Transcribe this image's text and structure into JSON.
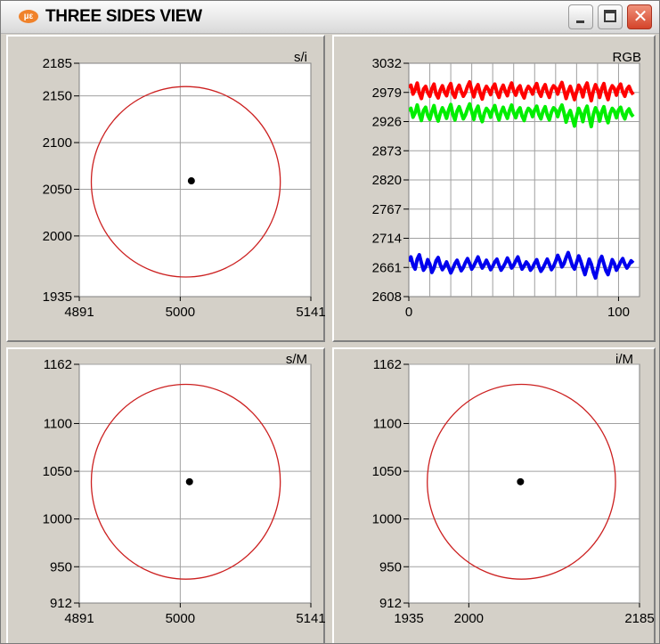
{
  "window": {
    "title": "THREE SIDES VIEW",
    "app_icon": "micro-epsilon-logo-icon",
    "app_icon_text": "µε",
    "close_glyph": "✕"
  },
  "colors": {
    "circle": "#cc2020",
    "grid": "#a0a0a0",
    "red_series": "#ff0000",
    "green_series": "#00ee00",
    "blue_series": "#0000ee",
    "plot_bg": "#ffffff",
    "panel_bg": "#d4d0c8"
  },
  "chart_data": [
    {
      "type": "scatter",
      "label": "s/i",
      "xlim": [
        4891,
        5141
      ],
      "ylim": [
        1935,
        2185
      ],
      "x_ticks": [
        {
          "value": 4891,
          "label": "4891"
        },
        {
          "value": 5000,
          "label": "5000"
        },
        {
          "value": 5141,
          "label": "5141"
        }
      ],
      "y_ticks": [
        {
          "value": 2185,
          "label": "2185"
        },
        {
          "value": 2150,
          "label": "2150"
        },
        {
          "value": 2100,
          "label": "2100"
        },
        {
          "value": 2050,
          "label": "2050"
        },
        {
          "value": 2000,
          "label": "2000"
        },
        {
          "value": 1935,
          "label": "1935"
        }
      ],
      "grid_x": [
        5000
      ],
      "grid_y": [
        2150,
        2100,
        2050,
        2000
      ],
      "grid": true,
      "circle": {
        "cx": 5006,
        "cy": 2058,
        "r": 102
      },
      "point": {
        "x": 5012,
        "y": 2059
      }
    },
    {
      "type": "line",
      "label": "RGB",
      "xlim": [
        0,
        110
      ],
      "ylim": [
        2608,
        3032
      ],
      "x_ticks": [
        {
          "value": 0,
          "label": "0"
        },
        {
          "value": 100,
          "label": "100"
        }
      ],
      "y_ticks": [
        {
          "value": 3032,
          "label": "3032"
        },
        {
          "value": 2979,
          "label": "2979"
        },
        {
          "value": 2926,
          "label": "2926"
        },
        {
          "value": 2873,
          "label": "2873"
        },
        {
          "value": 2820,
          "label": "2820"
        },
        {
          "value": 2767,
          "label": "2767"
        },
        {
          "value": 2714,
          "label": "2714"
        },
        {
          "value": 2661,
          "label": "2661"
        },
        {
          "value": 2608,
          "label": "2608"
        }
      ],
      "grid_x": [
        10,
        20,
        30,
        40,
        50,
        60,
        70,
        80,
        90,
        100
      ],
      "grid_y": [
        2979,
        2926,
        2873,
        2820,
        2767,
        2714,
        2661
      ],
      "grid": true,
      "series": [
        {
          "color": "#ff0000",
          "y": [
            2988,
            2992,
            2976,
            2984,
            2996,
            2978,
            2968,
            2985,
            2990,
            2979,
            2972,
            2986,
            2994,
            2976,
            2969,
            2983,
            2991,
            2980,
            2973,
            2988,
            2995,
            2977,
            2970,
            2985,
            2992,
            2981,
            2972,
            2979,
            2990,
            2998,
            2983,
            2971,
            2986,
            2993,
            2978,
            2967,
            2982,
            2990,
            2984,
            2975,
            2988,
            2994,
            2979,
            2970,
            2984,
            2992,
            2981,
            2973,
            2987,
            2996,
            2982,
            2974,
            2986,
            2991,
            2977,
            2969,
            2983,
            2990,
            2985,
            2976,
            2988,
            2995,
            2980,
            2972,
            2986,
            2993,
            2979,
            2970,
            2984,
            2991,
            2987,
            2976,
            2989,
            2997,
            2983,
            2968,
            2981,
            2990,
            2978,
            2966,
            2980,
            2992,
            2985,
            2971,
            2988,
            2996,
            2979,
            2964,
            2982,
            2993,
            2984,
            2970,
            2986,
            2995,
            2977,
            2966,
            2983,
            2991,
            2986,
            2974,
            2988,
            2994,
            2980,
            2972,
            2985,
            2990,
            2981,
            2975
          ]
        },
        {
          "color": "#00ee00",
          "y": [
            2945,
            2950,
            2934,
            2942,
            2956,
            2940,
            2928,
            2946,
            2952,
            2938,
            2930,
            2944,
            2955,
            2937,
            2927,
            2941,
            2951,
            2943,
            2932,
            2947,
            2957,
            2939,
            2929,
            2945,
            2953,
            2942,
            2931,
            2938,
            2949,
            2958,
            2944,
            2930,
            2946,
            2954,
            2936,
            2926,
            2941,
            2950,
            2945,
            2934,
            2947,
            2955,
            2940,
            2929,
            2943,
            2952,
            2941,
            2932,
            2946,
            2956,
            2942,
            2933,
            2945,
            2951,
            2936,
            2928,
            2942,
            2950,
            2946,
            2935,
            2947,
            2954,
            2939,
            2931,
            2945,
            2953,
            2938,
            2929,
            2943,
            2951,
            2947,
            2935,
            2948,
            2956,
            2942,
            2925,
            2938,
            2946,
            2932,
            2918,
            2936,
            2950,
            2941,
            2926,
            2945,
            2954,
            2934,
            2917,
            2939,
            2951,
            2943,
            2927,
            2944,
            2953,
            2935,
            2924,
            2941,
            2950,
            2945,
            2933,
            2947,
            2952,
            2939,
            2931,
            2944,
            2949,
            2940,
            2935
          ]
        },
        {
          "color": "#0000ee",
          "y": [
            2672,
            2680,
            2665,
            2658,
            2676,
            2684,
            2669,
            2656,
            2662,
            2675,
            2667,
            2652,
            2660,
            2673,
            2679,
            2666,
            2657,
            2663,
            2671,
            2661,
            2651,
            2659,
            2668,
            2674,
            2664,
            2655,
            2661,
            2670,
            2677,
            2668,
            2658,
            2664,
            2672,
            2680,
            2669,
            2660,
            2666,
            2674,
            2666,
            2657,
            2663,
            2671,
            2676,
            2665,
            2656,
            2662,
            2669,
            2678,
            2670,
            2660,
            2665,
            2673,
            2680,
            2668,
            2658,
            2664,
            2671,
            2666,
            2656,
            2661,
            2669,
            2675,
            2663,
            2654,
            2660,
            2668,
            2676,
            2667,
            2657,
            2663,
            2672,
            2683,
            2674,
            2662,
            2668,
            2679,
            2688,
            2676,
            2664,
            2658,
            2670,
            2682,
            2672,
            2659,
            2648,
            2662,
            2676,
            2667,
            2652,
            2642,
            2658,
            2673,
            2681,
            2668,
            2655,
            2648,
            2662,
            2675,
            2668,
            2656,
            2663,
            2671,
            2677,
            2667,
            2660,
            2666,
            2673,
            2669
          ]
        }
      ]
    },
    {
      "type": "scatter",
      "label": "s/M",
      "xlim": [
        4891,
        5141
      ],
      "ylim": [
        912,
        1162
      ],
      "x_ticks": [
        {
          "value": 4891,
          "label": "4891"
        },
        {
          "value": 5000,
          "label": "5000"
        },
        {
          "value": 5141,
          "label": "5141"
        }
      ],
      "y_ticks": [
        {
          "value": 1162,
          "label": "1162"
        },
        {
          "value": 1100,
          "label": "1100"
        },
        {
          "value": 1050,
          "label": "1050"
        },
        {
          "value": 1000,
          "label": "1000"
        },
        {
          "value": 950,
          "label": "950"
        },
        {
          "value": 912,
          "label": "912"
        }
      ],
      "grid_x": [
        5000
      ],
      "grid_y": [
        1162,
        1100,
        1050,
        1000,
        950
      ],
      "grid": true,
      "circle": {
        "cx": 5006,
        "cy": 1039,
        "r": 102
      },
      "point": {
        "x": 5010,
        "y": 1039
      }
    },
    {
      "type": "scatter",
      "label": "i/M",
      "xlim": [
        1935,
        2185
      ],
      "ylim": [
        912,
        1162
      ],
      "x_ticks": [
        {
          "value": 1935,
          "label": "1935"
        },
        {
          "value": 2000,
          "label": "2000"
        },
        {
          "value": 2185,
          "label": "2185"
        }
      ],
      "y_ticks": [
        {
          "value": 1162,
          "label": "1162"
        },
        {
          "value": 1100,
          "label": "1100"
        },
        {
          "value": 1050,
          "label": "1050"
        },
        {
          "value": 1000,
          "label": "1000"
        },
        {
          "value": 950,
          "label": "950"
        },
        {
          "value": 912,
          "label": "912"
        }
      ],
      "grid_x": [
        2000
      ],
      "grid_y": [
        1162,
        1100,
        1050,
        1000,
        950
      ],
      "grid": true,
      "circle": {
        "cx": 2057,
        "cy": 1039,
        "r": 102
      },
      "point": {
        "x": 2056,
        "y": 1039
      }
    }
  ]
}
